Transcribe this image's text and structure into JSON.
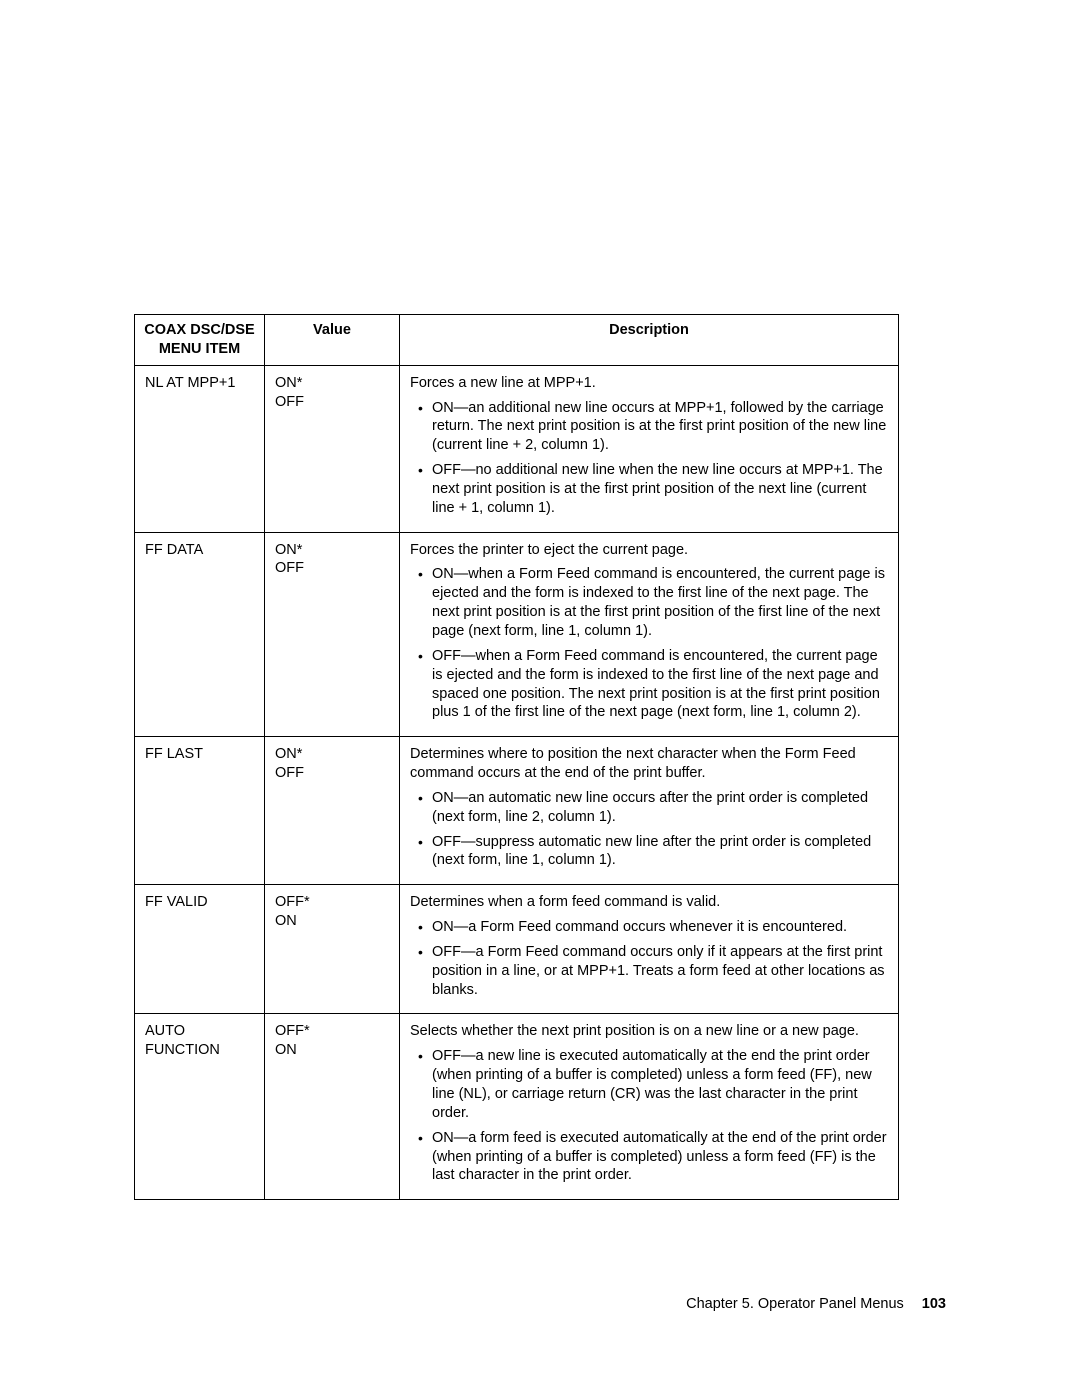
{
  "table": {
    "headers": {
      "col1_line1": "COAX DSC/DSE",
      "col1_line2": "MENU ITEM",
      "col2": "Value",
      "col3": "Description"
    },
    "rows": [
      {
        "menu_item": "NL AT MPP+1",
        "values": [
          "ON*",
          "OFF"
        ],
        "intro": "Forces a new line at MPP+1.",
        "bullets": [
          "ON—an additional new line occurs at MPP+1, followed by the carriage return.  The next print position is at the first print position of the new line (current line + 2, column 1).",
          "OFF—no additional new line when the new line occurs at MPP+1.  The next print position is at the first print position of the next line (current line + 1, column 1)."
        ]
      },
      {
        "menu_item": "FF DATA",
        "values": [
          "ON*",
          "OFF"
        ],
        "intro": "Forces the printer to eject the current page.",
        "bullets": [
          "ON—when a Form Feed command is encountered, the current page is ejected and the form is indexed to the first line of the next page.  The next print position is at the first print position of the first line of the next page (next form, line 1, column 1).",
          "OFF—when a Form Feed command is encountered, the current page is ejected and the form is indexed to the first line of the next page and spaced one position.  The next print position is at the first print position plus 1 of the first line of the next page (next form, line 1, column 2)."
        ]
      },
      {
        "menu_item": "FF LAST",
        "values": [
          "ON*",
          "OFF"
        ],
        "intro": "Determines where to position the next character when the Form Feed command occurs at the end of the print buffer.",
        "bullets": [
          "ON—an automatic new line occurs after the print order is completed (next form, line 2, column 1).",
          "OFF—suppress automatic new line after the print order is completed (next form, line 1, column 1)."
        ]
      },
      {
        "menu_item": "FF VALID",
        "values": [
          "OFF*",
          "ON"
        ],
        "intro": "Determines when a form feed command is valid.",
        "bullets": [
          "ON—a Form Feed command occurs whenever it is encountered.",
          "OFF—a Form Feed command occurs only if it appears at the first print position in a line, or at MPP+1.  Treats a form feed at other locations as blanks."
        ]
      },
      {
        "menu_item": "AUTO FUNCTION",
        "values": [
          "OFF*",
          "ON"
        ],
        "intro": "Selects whether the next print position is on a new line or a new page.",
        "bullets": [
          "OFF—a new line is executed automatically at the end the print order (when printing of a buffer is completed) unless a form feed (FF), new line (NL), or carriage return (CR) was the last character in the print order.",
          "ON—a form feed is executed automatically at the end of the print order (when printing of a buffer is completed) unless a form feed (FF) is the last character in the print order."
        ]
      }
    ]
  },
  "footer": {
    "chapter": "Chapter 5.  Operator Panel Menus",
    "page_number": "103"
  }
}
